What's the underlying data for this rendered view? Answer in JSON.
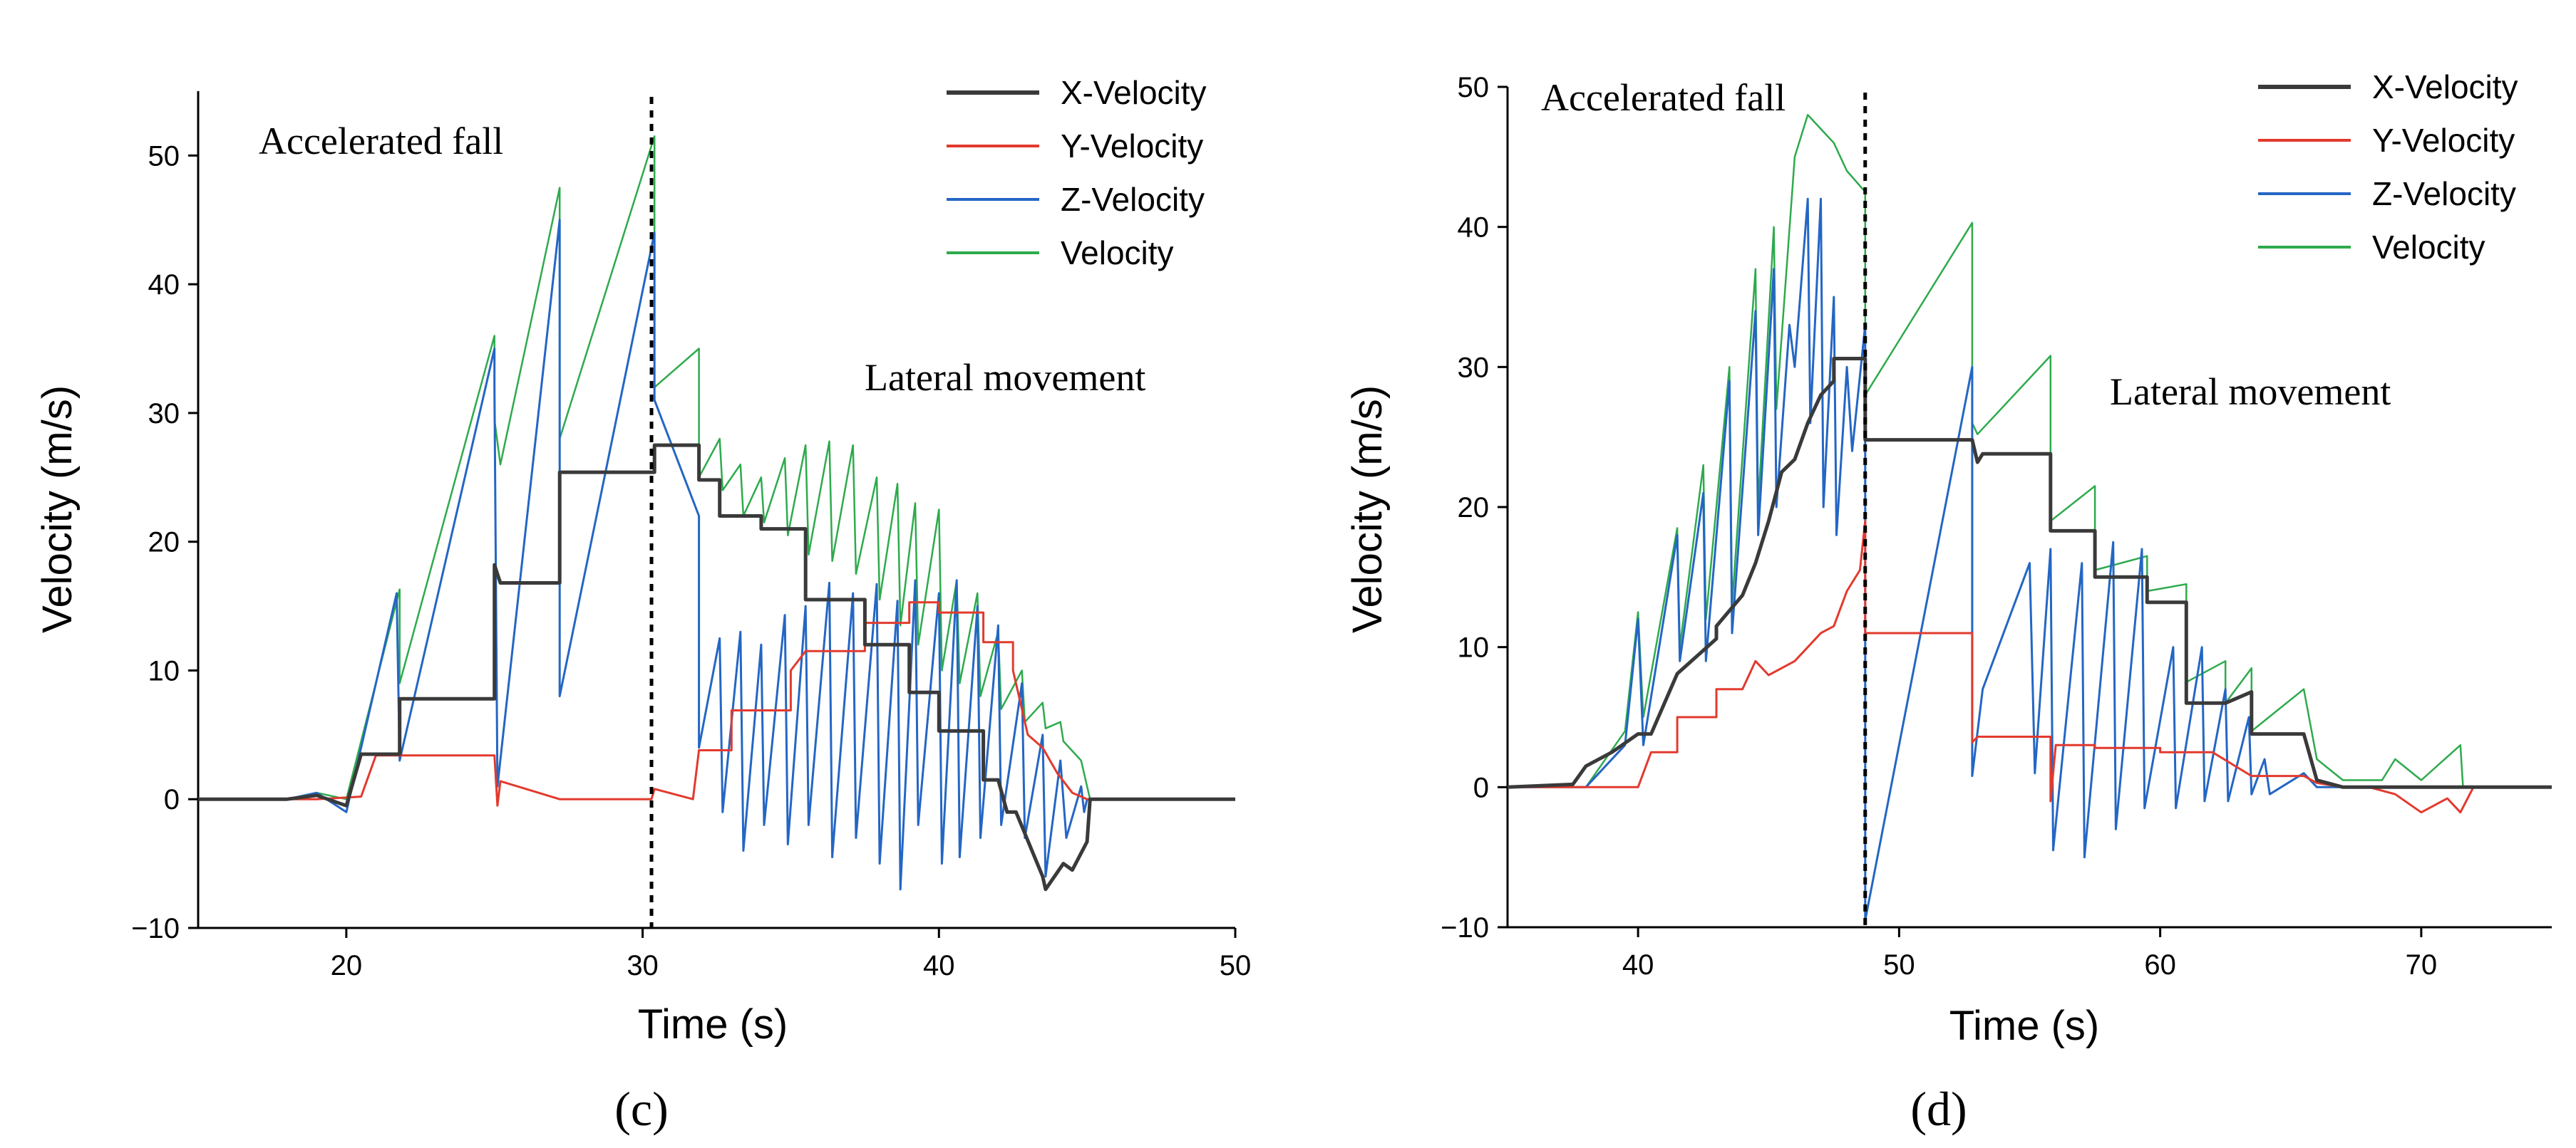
{
  "chart_data": [
    {
      "type": "line",
      "panel_label": "(c)",
      "xlabel": "Time (s)",
      "ylabel": "Velocity (m/s)",
      "xlim": [
        15,
        50
      ],
      "ylim": [
        -10,
        55
      ],
      "xticks": [
        20,
        30,
        40,
        50
      ],
      "yticks": [
        -10,
        0,
        10,
        20,
        30,
        40,
        50
      ],
      "legend_position": "top-right",
      "annotations": [
        {
          "id": "accel",
          "text": "Accelerated fall"
        },
        {
          "id": "lateral",
          "text": "Lateral movement"
        }
      ],
      "divider_x": 30.3,
      "series": [
        {
          "name": "X-Velocity",
          "color": "#3a3a3a",
          "x": [
            15,
            18,
            19,
            20,
            20.5,
            21.8,
            21.8,
            25,
            25,
            25.2,
            27.2,
            27.2,
            30.4,
            30.4,
            31.9,
            31.9,
            32.6,
            32.6,
            34,
            34,
            35.5,
            35.5,
            37.5,
            37.5,
            39,
            39,
            40,
            40,
            41.5,
            41.5,
            42,
            42.3,
            42.6,
            43.5,
            43.6,
            44.2,
            44.5,
            45,
            45.1,
            50
          ],
          "y": [
            0,
            0,
            0.3,
            -0.5,
            3.5,
            3.5,
            7.8,
            7.8,
            18.2,
            16.8,
            16.8,
            25.4,
            25.4,
            27.5,
            27.5,
            24.8,
            24.8,
            22,
            22,
            21,
            21,
            15.5,
            15.5,
            12,
            12,
            8.3,
            8.3,
            5.3,
            5.3,
            1.5,
            1.5,
            -1,
            -1,
            -6,
            -7,
            -5,
            -5.5,
            -3.3,
            0,
            0
          ]
        },
        {
          "name": "Y-Velocity",
          "color": "#e23a2e",
          "x": [
            15,
            19,
            20.5,
            21,
            21.8,
            25,
            25.1,
            25.2,
            27.2,
            30.3,
            30.4,
            31.7,
            31.9,
            33,
            33,
            35,
            35,
            35.5,
            37.5,
            37.5,
            39,
            39,
            40,
            40,
            41.5,
            41.5,
            42.5,
            42.5,
            43,
            43.5,
            44,
            44.5,
            45,
            45.1,
            50
          ],
          "y": [
            0,
            0,
            0.2,
            3.4,
            3.4,
            3.4,
            -0.5,
            1.4,
            0,
            0,
            0.8,
            0,
            3.8,
            3.8,
            6.9,
            6.9,
            10,
            11.5,
            11.5,
            13.7,
            13.7,
            15.3,
            15.3,
            14.5,
            14.5,
            12.2,
            12.2,
            10,
            5,
            4,
            2,
            0.5,
            0,
            0,
            0
          ]
        },
        {
          "name": "Z-Velocity",
          "color": "#2466c4",
          "x": [
            15,
            18,
            19,
            20,
            20.5,
            21.7,
            21.8,
            25,
            25,
            25.1,
            27.2,
            27.2,
            30.4,
            30.4,
            31.9,
            31.9,
            32.6,
            32.7,
            33.3,
            33.4,
            34,
            34.1,
            34.8,
            34.9,
            35.5,
            35.6,
            36.3,
            36.4,
            37.1,
            37.2,
            37.9,
            38,
            38.6,
            38.7,
            39.2,
            39.3,
            40,
            40.1,
            40.6,
            40.7,
            41.3,
            41.4,
            42,
            42.1,
            42.8,
            42.9,
            43.5,
            43.6,
            44.1,
            44.3,
            44.8,
            44.9,
            45,
            50
          ],
          "y": [
            0,
            0,
            0.5,
            -1,
            4,
            16,
            3,
            35,
            32,
            1,
            45,
            8,
            44,
            31,
            22,
            4,
            12.5,
            -1,
            13,
            -4,
            12,
            -2,
            14.3,
            -3.5,
            15,
            -2,
            16.8,
            -4.5,
            16,
            -3,
            16.7,
            -5,
            15.4,
            -7,
            17,
            -2,
            16,
            -5,
            17,
            -4.5,
            15,
            -3,
            13.5,
            -2,
            9,
            -3,
            5,
            -6,
            3,
            -3,
            1,
            -1,
            0,
            0
          ]
        },
        {
          "name": "Velocity",
          "color": "#2eaa4c",
          "x": [
            15,
            18,
            19,
            20,
            20.5,
            21.8,
            21.8,
            25,
            25,
            25.2,
            27.2,
            27.2,
            30.4,
            30.4,
            31.9,
            31.9,
            32.6,
            32.7,
            33.3,
            33.4,
            34,
            34.1,
            34.8,
            34.9,
            35.5,
            35.6,
            36.3,
            36.4,
            37.1,
            37.2,
            37.9,
            38,
            38.6,
            38.7,
            39.2,
            39.3,
            40,
            40.1,
            40.6,
            40.7,
            41.3,
            41.4,
            42,
            42.1,
            42.8,
            42.9,
            43.5,
            43.6,
            44.1,
            44.2,
            44.8,
            45,
            45.1,
            50
          ],
          "y": [
            0,
            0,
            0.5,
            0,
            4.5,
            16.3,
            9,
            36,
            29.5,
            26,
            47.5,
            28,
            51.5,
            32,
            35,
            25,
            28,
            24,
            26,
            22,
            25,
            21.5,
            26.5,
            20.5,
            27.5,
            19,
            27.8,
            18.5,
            27.5,
            17.5,
            25,
            15.5,
            24.5,
            13.5,
            23,
            12,
            22.5,
            10,
            17,
            9,
            16,
            8,
            13,
            7,
            10,
            6,
            7.5,
            5.5,
            6,
            4.5,
            3,
            1,
            0,
            0
          ]
        }
      ]
    },
    {
      "type": "line",
      "panel_label": "(d)",
      "xlabel": "Time (s)",
      "ylabel": "Velocity (m/s)",
      "xlim": [
        35,
        75
      ],
      "ylim": [
        -10,
        50
      ],
      "xticks": [
        40,
        50,
        60,
        70
      ],
      "yticks": [
        -10,
        0,
        10,
        20,
        30,
        40,
        50
      ],
      "legend_position": "top-right",
      "annotations": [
        {
          "id": "accel",
          "text": "Accelerated fall"
        },
        {
          "id": "lateral",
          "text": "Lateral movement"
        }
      ],
      "divider_x": 48.7,
      "series": [
        {
          "name": "X-Velocity",
          "color": "#3a3a3a",
          "x": [
            35,
            37.5,
            38,
            39,
            40,
            40.5,
            41.5,
            41.5,
            43,
            43,
            44,
            44.5,
            45,
            45.5,
            46,
            46.5,
            47,
            47.5,
            47.5,
            48.7,
            48.7,
            52.8,
            53,
            53.2,
            55.8,
            55.8,
            57.5,
            57.5,
            59.5,
            59.5,
            61,
            61,
            62.5,
            63.5,
            63.5,
            65.5,
            66,
            67,
            75
          ],
          "y": [
            0,
            0.2,
            1.5,
            2.5,
            3.8,
            3.8,
            8.1,
            8.1,
            10.6,
            11.5,
            13.7,
            16,
            19,
            22.5,
            23.4,
            26,
            28,
            29,
            30.6,
            30.6,
            24.8,
            24.8,
            23.2,
            23.8,
            23.8,
            18.3,
            18.3,
            15,
            15,
            13.2,
            13.2,
            6,
            6,
            6.8,
            3.8,
            3.8,
            0.5,
            0,
            0
          ]
        },
        {
          "name": "Y-Velocity",
          "color": "#e23a2e",
          "x": [
            35,
            38,
            40,
            40.5,
            41.5,
            41.5,
            43,
            43,
            44,
            44.5,
            45,
            46,
            46.5,
            47,
            47.5,
            48,
            48.5,
            48.7,
            48.7,
            52.8,
            52.8,
            53,
            55.8,
            55.8,
            56,
            57.5,
            57.5,
            60,
            60,
            62,
            63.5,
            65.5,
            66,
            67,
            68,
            69,
            70,
            71,
            71.5,
            72,
            75
          ],
          "y": [
            0,
            0,
            0,
            2.5,
            2.5,
            5,
            5,
            7,
            7,
            9,
            8,
            9,
            10,
            11,
            11.5,
            14,
            15.5,
            19,
            11,
            11,
            3.2,
            3.6,
            3.6,
            -1,
            3,
            3,
            2.8,
            2.8,
            2.5,
            2.5,
            0.8,
            0.8,
            0.3,
            0,
            0,
            -0.5,
            -1.8,
            -0.8,
            -1.8,
            0,
            0
          ]
        },
        {
          "name": "Z-Velocity",
          "color": "#2466c4",
          "x": [
            35,
            38,
            39.5,
            40,
            40.2,
            41.5,
            41.6,
            42.5,
            42.6,
            43.5,
            43.6,
            44.5,
            44.6,
            45.2,
            45.3,
            45.8,
            46,
            46.5,
            46.6,
            47,
            47.1,
            47.5,
            47.6,
            48,
            48.2,
            48.7,
            48.7,
            52.8,
            52.8,
            53.2,
            55,
            55.2,
            55.8,
            55.9,
            57,
            57.1,
            58.2,
            58.3,
            59.3,
            59.4,
            60.5,
            60.6,
            61.6,
            61.7,
            62.5,
            62.6,
            63.4,
            63.5,
            64,
            64.2,
            65.5,
            66,
            67,
            68,
            75
          ],
          "y": [
            0,
            0,
            3,
            12,
            3,
            18,
            9,
            21,
            9,
            29,
            11,
            34,
            18,
            37,
            20,
            33,
            30,
            42,
            26,
            42,
            20,
            35,
            18,
            30,
            24,
            33,
            -9.5,
            30,
            0.8,
            7,
            16,
            1,
            17,
            -4.5,
            16,
            -5,
            17.5,
            -3,
            17,
            -1.5,
            10,
            -1.5,
            10,
            -1,
            7,
            -1,
            5,
            -0.5,
            2,
            -0.5,
            1,
            0,
            0,
            0,
            0
          ]
        },
        {
          "name": "Velocity",
          "color": "#2eaa4c",
          "x": [
            35,
            38,
            39.5,
            40,
            40.2,
            41.5,
            41.6,
            42.5,
            42.6,
            43.5,
            43.6,
            44.5,
            44.6,
            45.2,
            45.3,
            46,
            46.5,
            47,
            47.5,
            48,
            48.7,
            48.7,
            52.8,
            52.8,
            53,
            55.8,
            55.8,
            57.5,
            57.5,
            59.5,
            59.5,
            61,
            61,
            62.5,
            62.5,
            63.5,
            63.5,
            65.5,
            66,
            67,
            68.5,
            69,
            70,
            71.5,
            71.6,
            75
          ],
          "y": [
            0,
            0,
            4,
            12.5,
            5,
            18.5,
            10,
            23,
            12,
            30,
            13,
            37,
            20,
            40,
            27,
            45,
            48,
            47,
            46,
            44,
            42.5,
            28,
            40.3,
            26,
            25.2,
            30.8,
            19,
            21.5,
            15.5,
            16.5,
            14,
            14.5,
            7.5,
            9,
            6,
            8.5,
            4,
            7,
            2,
            0.5,
            0.5,
            2,
            0.5,
            3,
            0,
            0
          ]
        }
      ]
    }
  ]
}
